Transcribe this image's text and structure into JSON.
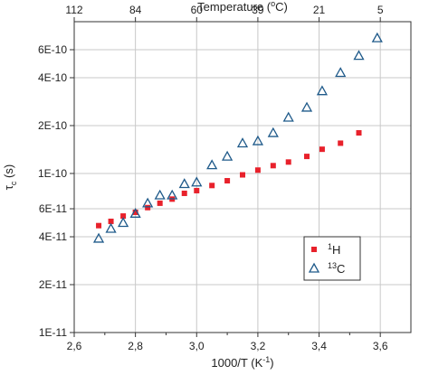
{
  "chart_data": {
    "type": "scatter",
    "xlabel_base": "1000/T (K",
    "xlabel_sup": "-1",
    "xlabel_end": ")",
    "ylabel_base": "τ",
    "ylabel_sub": "c",
    "ylabel_end": " (s)",
    "top_axis_base": "Temperature (",
    "top_axis_sup": "o",
    "top_axis_end": "C)",
    "xlim": [
      2.6,
      3.7
    ],
    "ylim": [
      1e-11,
      9e-10
    ],
    "yscale": "log",
    "grid": true,
    "legend_position": "lower-right",
    "x_ticks": [
      2.6,
      2.8,
      3.0,
      3.2,
      3.4,
      3.6
    ],
    "x_tick_labels": [
      "2,6",
      "2,8",
      "3,0",
      "3,2",
      "3,4",
      "3,6"
    ],
    "y_ticks": [
      1e-11,
      2e-11,
      4e-11,
      6e-11,
      1e-10,
      2e-10,
      4e-10,
      6e-10
    ],
    "y_tick_labels": [
      "1E-11",
      "2E-11",
      "4E-11",
      "6E-11",
      "1E-10",
      "2E-10",
      "4E-10",
      "6E-10"
    ],
    "top_ticks_x": [
      2.6,
      2.8,
      3.0,
      3.2,
      3.4,
      3.6
    ],
    "top_tick_labels": [
      "112",
      "84",
      "60",
      "39",
      "21",
      "5"
    ],
    "series": [
      {
        "label_sup": "1",
        "label_base": "H",
        "marker": "square",
        "color": "#e8212b",
        "x": [
          2.68,
          2.72,
          2.76,
          2.8,
          2.84,
          2.88,
          2.92,
          2.96,
          3.0,
          3.05,
          3.1,
          3.15,
          3.2,
          3.25,
          3.3,
          3.36,
          3.41,
          3.47,
          3.53
        ],
        "y": [
          4.7e-11,
          5e-11,
          5.4e-11,
          5.7e-11,
          6.1e-11,
          6.5e-11,
          6.9e-11,
          7.5e-11,
          7.8e-11,
          8.4e-11,
          9e-11,
          9.8e-11,
          1.05e-10,
          1.12e-10,
          1.18e-10,
          1.28e-10,
          1.42e-10,
          1.55e-10,
          1.8e-10
        ]
      },
      {
        "label_sup": "13",
        "label_base": "C",
        "marker": "triangle-open",
        "color": "#1f5a8a",
        "x": [
          2.68,
          2.72,
          2.76,
          2.8,
          2.84,
          2.88,
          2.92,
          2.96,
          3.0,
          3.05,
          3.1,
          3.15,
          3.2,
          3.25,
          3.3,
          3.36,
          3.41,
          3.47,
          3.53,
          3.59
        ],
        "y": [
          3.9e-11,
          4.5e-11,
          4.9e-11,
          5.6e-11,
          6.5e-11,
          7.3e-11,
          7.3e-11,
          8.6e-11,
          8.8e-11,
          1.13e-10,
          1.28e-10,
          1.55e-10,
          1.6e-10,
          1.8e-10,
          2.25e-10,
          2.6e-10,
          3.3e-10,
          4.3e-10,
          5.5e-10,
          7.1e-10
        ]
      }
    ]
  }
}
